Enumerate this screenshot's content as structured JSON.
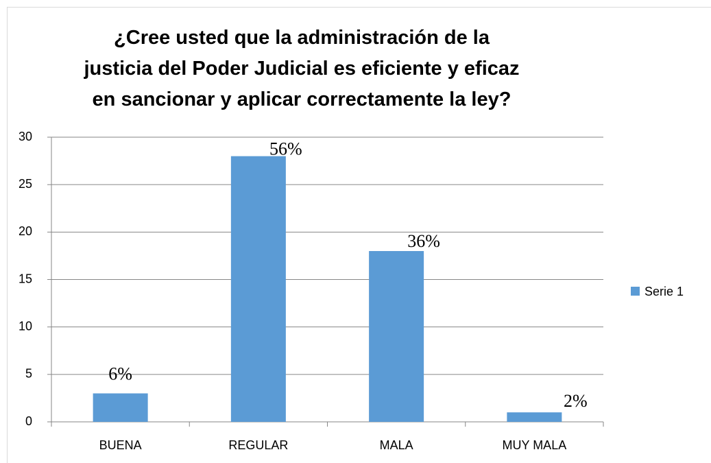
{
  "chart_data": {
    "type": "bar",
    "title": "¿Cree usted que la administración de la justicia del Poder Judicial es eficiente y eficaz en sancionar y aplicar correctamente la ley?",
    "categories": [
      "BUENA",
      "REGULAR",
      "MALA",
      "MUY MALA"
    ],
    "series": [
      {
        "name": "Serie 1",
        "color": "#5b9bd5",
        "values": [
          3,
          28,
          18,
          1
        ]
      }
    ],
    "annotations": [
      "6%",
      "56%",
      "36%",
      "2%"
    ],
    "ylim": [
      0,
      30
    ],
    "yticks": [
      0,
      5,
      10,
      15,
      20,
      25,
      30
    ],
    "grid": true,
    "legend": "right"
  }
}
